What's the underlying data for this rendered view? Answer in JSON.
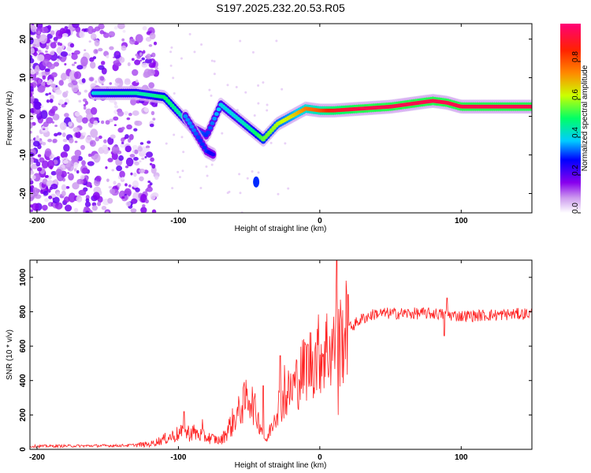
{
  "title": "S197.2025.232.20.53.R05",
  "chart_data": [
    {
      "type": "heatmap",
      "name": "spectrogram",
      "xlabel": "Height of straight line (km)",
      "ylabel": "Frequency (Hz)",
      "xlim": [
        -205,
        150
      ],
      "ylim": [
        -25,
        24
      ],
      "xticks": [
        -200,
        -100,
        0,
        100
      ],
      "yticks": [
        -20,
        -10,
        0,
        10,
        20
      ],
      "colorbar": {
        "label": "Normalized spectral amplitude",
        "range": [
          0,
          1
        ],
        "ticks": [
          0.0,
          0.2,
          0.4,
          0.6,
          0.8
        ],
        "colors": [
          "#ffffff",
          "#cc99ee",
          "#8800ee",
          "#0000ff",
          "#00ccff",
          "#00ff66",
          "#ccff00",
          "#ff8800",
          "#ff2200",
          "#ff0077"
        ]
      },
      "ridge": {
        "x": [
          -160,
          -145,
          -130,
          -120,
          -110,
          -100,
          -90,
          -80,
          -70,
          -60,
          -50,
          -40,
          -30,
          -20,
          -10,
          0,
          10,
          30,
          50,
          70,
          80,
          90,
          100,
          120,
          150
        ],
        "y": [
          6,
          6,
          6,
          5.5,
          5,
          1,
          -3,
          -5,
          3,
          0,
          -3,
          -6,
          -2,
          0,
          2,
          1.5,
          1.5,
          2,
          2.5,
          3.5,
          4,
          3.5,
          2.5,
          2.5,
          2.5
        ],
        "amplitude": [
          0.4,
          0.45,
          0.45,
          0.45,
          0.5,
          0.45,
          0.35,
          0.3,
          0.4,
          0.4,
          0.45,
          0.55,
          0.6,
          0.65,
          0.75,
          0.8,
          0.9,
          0.95,
          0.95,
          0.95,
          0.95,
          0.95,
          0.95,
          0.95,
          0.95
        ]
      },
      "branch": {
        "x": [
          -95,
          -90,
          -85,
          -80,
          -75
        ],
        "y": [
          0,
          -3,
          -6,
          -9,
          -10
        ],
        "amplitude": [
          0.35,
          0.35,
          0.3,
          0.3,
          0.25
        ]
      },
      "blob": {
        "x": -45,
        "y": -17,
        "amplitude": 0.3
      }
    },
    {
      "type": "line",
      "name": "snr",
      "xlabel": "Height of straight line (km)",
      "ylabel": "SNR (10 * v/v)",
      "xlim": [
        -205,
        150
      ],
      "ylim": [
        0,
        1100
      ],
      "xticks": [
        -200,
        -100,
        0,
        100
      ],
      "yticks": [
        0,
        200,
        400,
        600,
        800,
        1000
      ],
      "color": "#ff2020",
      "envelope": {
        "x": [
          -205,
          -140,
          -120,
          -110,
          -100,
          -90,
          -80,
          -70,
          -60,
          -50,
          -42,
          -38,
          -30,
          -20,
          -10,
          0,
          5,
          10,
          15,
          20,
          30,
          40,
          60,
          80,
          100,
          120,
          150
        ],
        "y": [
          18,
          22,
          30,
          60,
          90,
          100,
          70,
          50,
          180,
          320,
          140,
          40,
          250,
          350,
          480,
          560,
          580,
          600,
          640,
          700,
          760,
          790,
          790,
          790,
          775,
          780,
          790
        ]
      },
      "spikes": [
        {
          "x": -96,
          "y": 220
        },
        {
          "x": -83,
          "y": 175
        },
        {
          "x": -40,
          "y": 370
        },
        {
          "x": -28,
          "y": 545
        },
        {
          "x": -25,
          "y": 490
        },
        {
          "x": -10,
          "y": 610
        },
        {
          "x": 5,
          "y": 790
        },
        {
          "x": 12,
          "y": 1100
        },
        {
          "x": 13,
          "y": 200
        },
        {
          "x": 20,
          "y": 900
        },
        {
          "x": 90,
          "y": 880
        },
        {
          "x": 88,
          "y": 660
        }
      ]
    }
  ]
}
